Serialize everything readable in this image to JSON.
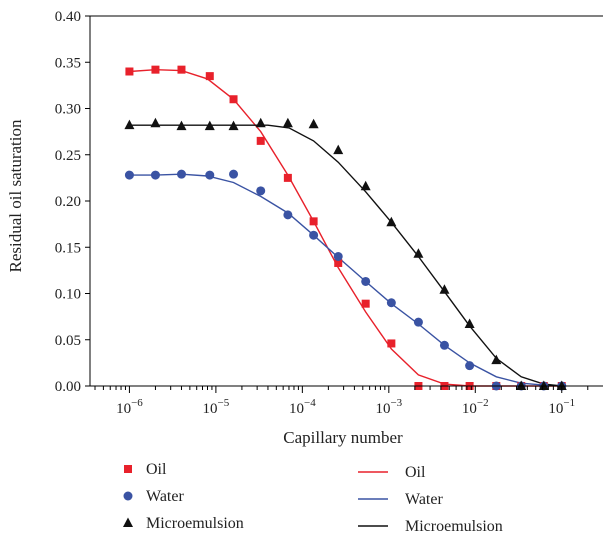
{
  "chart_data": {
    "type": "scatter",
    "title": "",
    "xlabel": "Capillary number",
    "ylabel": "Residual oil saturation",
    "xscale": "log",
    "xlim": [
      3.5e-07,
      0.3
    ],
    "ylim": [
      0,
      0.4
    ],
    "x_ticks": [
      {
        "value": 1e-06,
        "base": "10",
        "exp": "−6"
      },
      {
        "value": 1e-05,
        "base": "10",
        "exp": "−5"
      },
      {
        "value": 0.0001,
        "base": "10",
        "exp": "−4"
      },
      {
        "value": 0.001,
        "base": "10",
        "exp": "−3"
      },
      {
        "value": 0.01,
        "base": "10",
        "exp": "−2"
      },
      {
        "value": 0.1,
        "base": "10",
        "exp": "−1"
      }
    ],
    "y_ticks": [
      "0.00",
      "0.05",
      "0.10",
      "0.15",
      "0.20",
      "0.25",
      "0.30",
      "0.35",
      "0.40"
    ],
    "grid": false,
    "legend_position": "bottom",
    "series": [
      {
        "name": "Oil",
        "kind": "points",
        "marker": "square",
        "color": "#e8212b",
        "points": [
          [
            1e-06,
            0.34
          ],
          [
            2e-06,
            0.342
          ],
          [
            4e-06,
            0.342
          ],
          [
            8.5e-06,
            0.335
          ],
          [
            1.6e-05,
            0.31
          ],
          [
            3.3e-05,
            0.265
          ],
          [
            6.8e-05,
            0.225
          ],
          [
            0.000135,
            0.178
          ],
          [
            0.00026,
            0.133
          ],
          [
            0.00054,
            0.089
          ],
          [
            0.00107,
            0.046
          ],
          [
            0.0022,
            0.0
          ],
          [
            0.0044,
            0.0
          ],
          [
            0.0086,
            0.0
          ],
          [
            0.0175,
            0.0
          ],
          [
            0.034,
            0.0
          ],
          [
            0.062,
            0.0
          ],
          [
            0.1,
            0.0
          ]
        ]
      },
      {
        "name": "Water",
        "kind": "points",
        "marker": "circle",
        "color": "#3a53a3",
        "points": [
          [
            1e-06,
            0.228
          ],
          [
            2e-06,
            0.228
          ],
          [
            4e-06,
            0.229
          ],
          [
            8.5e-06,
            0.228
          ],
          [
            1.6e-05,
            0.229
          ],
          [
            3.3e-05,
            0.211
          ],
          [
            6.8e-05,
            0.185
          ],
          [
            0.000135,
            0.163
          ],
          [
            0.00026,
            0.14
          ],
          [
            0.00054,
            0.113
          ],
          [
            0.00107,
            0.09
          ],
          [
            0.0022,
            0.069
          ],
          [
            0.0044,
            0.044
          ],
          [
            0.0086,
            0.022
          ],
          [
            0.0175,
            0.0
          ],
          [
            0.034,
            0.0
          ],
          [
            0.062,
            0.0
          ],
          [
            0.1,
            0.0
          ]
        ]
      },
      {
        "name": "Microemulsion",
        "kind": "points",
        "marker": "triangle",
        "color": "#111111",
        "points": [
          [
            1e-06,
            0.282
          ],
          [
            2e-06,
            0.284
          ],
          [
            4e-06,
            0.281
          ],
          [
            8.5e-06,
            0.281
          ],
          [
            1.6e-05,
            0.281
          ],
          [
            3.3e-05,
            0.284
          ],
          [
            6.8e-05,
            0.284
          ],
          [
            0.000135,
            0.283
          ],
          [
            0.00026,
            0.255
          ],
          [
            0.00054,
            0.216
          ],
          [
            0.00107,
            0.177
          ],
          [
            0.0022,
            0.143
          ],
          [
            0.0044,
            0.104
          ],
          [
            0.0086,
            0.067
          ],
          [
            0.0175,
            0.028
          ],
          [
            0.034,
            0.0
          ],
          [
            0.062,
            0.0
          ],
          [
            0.1,
            0.0
          ]
        ]
      },
      {
        "name": "Oil",
        "kind": "line",
        "color": "#e8212b",
        "points": [
          [
            1e-06,
            0.34
          ],
          [
            2e-06,
            0.342
          ],
          [
            4e-06,
            0.341
          ],
          [
            8e-06,
            0.332
          ],
          [
            1.6e-05,
            0.31
          ],
          [
            3.3e-05,
            0.275
          ],
          [
            6.8e-05,
            0.228
          ],
          [
            0.000135,
            0.178
          ],
          [
            0.00026,
            0.128
          ],
          [
            0.00054,
            0.08
          ],
          [
            0.00107,
            0.04
          ],
          [
            0.0022,
            0.012
          ],
          [
            0.0044,
            0.002
          ],
          [
            0.0086,
            0.0
          ],
          [
            0.0175,
            0.0
          ],
          [
            0.1,
            0.0
          ]
        ]
      },
      {
        "name": "Water",
        "kind": "line",
        "color": "#3a53a3",
        "points": [
          [
            1e-06,
            0.228
          ],
          [
            2e-06,
            0.228
          ],
          [
            4e-06,
            0.229
          ],
          [
            8e-06,
            0.227
          ],
          [
            1.6e-05,
            0.22
          ],
          [
            3.3e-05,
            0.205
          ],
          [
            6.8e-05,
            0.187
          ],
          [
            0.000135,
            0.163
          ],
          [
            0.00026,
            0.139
          ],
          [
            0.00054,
            0.113
          ],
          [
            0.00107,
            0.089
          ],
          [
            0.0022,
            0.067
          ],
          [
            0.0044,
            0.044
          ],
          [
            0.0086,
            0.025
          ],
          [
            0.0175,
            0.01
          ],
          [
            0.034,
            0.003
          ],
          [
            0.062,
            0.001
          ],
          [
            0.1,
            0.0
          ]
        ]
      },
      {
        "name": "Microemulsion",
        "kind": "line",
        "color": "#111111",
        "points": [
          [
            1e-06,
            0.282
          ],
          [
            4e-06,
            0.282
          ],
          [
            1.6e-05,
            0.282
          ],
          [
            4e-05,
            0.282
          ],
          [
            7e-05,
            0.279
          ],
          [
            0.000135,
            0.265
          ],
          [
            0.00026,
            0.242
          ],
          [
            0.00054,
            0.21
          ],
          [
            0.00107,
            0.177
          ],
          [
            0.0022,
            0.14
          ],
          [
            0.0044,
            0.102
          ],
          [
            0.0086,
            0.065
          ],
          [
            0.0175,
            0.03
          ],
          [
            0.034,
            0.01
          ],
          [
            0.062,
            0.002
          ],
          [
            0.1,
            0.0
          ]
        ]
      }
    ]
  }
}
